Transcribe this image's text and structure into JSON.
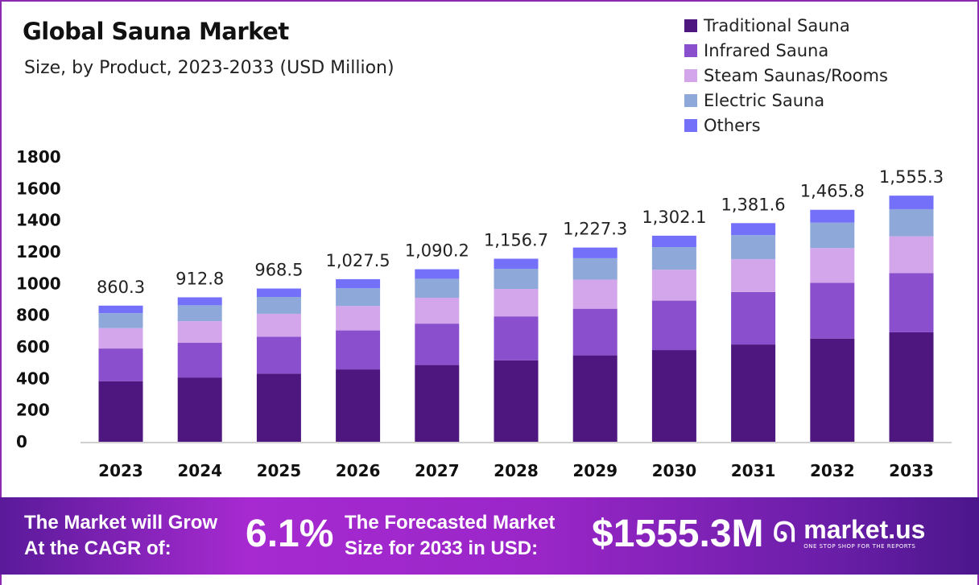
{
  "chart_data": {
    "type": "bar",
    "stacked": true,
    "title": "Global Sauna Market",
    "subtitle": "Size, by Product, 2023-2033 (USD Million)",
    "categories": [
      "2023",
      "2024",
      "2025",
      "2026",
      "2027",
      "2028",
      "2029",
      "2030",
      "2031",
      "2032",
      "2033"
    ],
    "series": [
      {
        "name": "Traditional Sauna",
        "color": "#4e1780",
        "values": [
          382.8,
          406.2,
          431.0,
          457.2,
          485.1,
          514.7,
          546.1,
          579.4,
          614.8,
          652.3,
          692.1
        ]
      },
      {
        "name": "Infrared Sauna",
        "color": "#8a4fcc",
        "values": [
          206.5,
          219.1,
          232.4,
          246.6,
          261.6,
          277.6,
          294.6,
          312.5,
          331.6,
          351.8,
          373.3
        ]
      },
      {
        "name": "Steam Saunas/Rooms",
        "color": "#d3a6ec",
        "values": [
          129.0,
          136.9,
          145.3,
          154.1,
          163.5,
          173.5,
          184.1,
          195.3,
          207.2,
          219.9,
          233.3
        ]
      },
      {
        "name": "Electric Sauna",
        "color": "#8ea8da",
        "values": [
          94.6,
          100.4,
          106.5,
          113.0,
          119.9,
          127.2,
          135.0,
          143.2,
          152.0,
          161.2,
          171.1
        ]
      },
      {
        "name": "Others",
        "color": "#7470fa",
        "values": [
          47.4,
          50.2,
          53.3,
          56.6,
          60.1,
          63.7,
          67.5,
          71.7,
          76.0,
          80.6,
          85.5
        ]
      }
    ],
    "totals": [
      "860.3",
      "912.8",
      "968.5",
      "1,027.5",
      "1,090.2",
      "1,156.7",
      "1,227.3",
      "1,302.1",
      "1,381.6",
      "1,465.8",
      "1,555.3"
    ],
    "yticks": [
      "0",
      "200",
      "400",
      "600",
      "800",
      "1000",
      "1200",
      "1400",
      "1600",
      "1800"
    ],
    "ylim": [
      0,
      1800
    ],
    "grid": false,
    "legend": "top-right"
  },
  "banner": {
    "cagr_label_1": "The Market will Grow",
    "cagr_label_2": "At the CAGR of:",
    "cagr_value": "6.1%",
    "forecast_label_1": "The Forecasted Market",
    "forecast_label_2": "Size for 2033 in USD:",
    "forecast_value": "$1555.3M",
    "logo_name": "market.us",
    "logo_tagline": "ONE STOP SHOP FOR THE REPORTS"
  }
}
